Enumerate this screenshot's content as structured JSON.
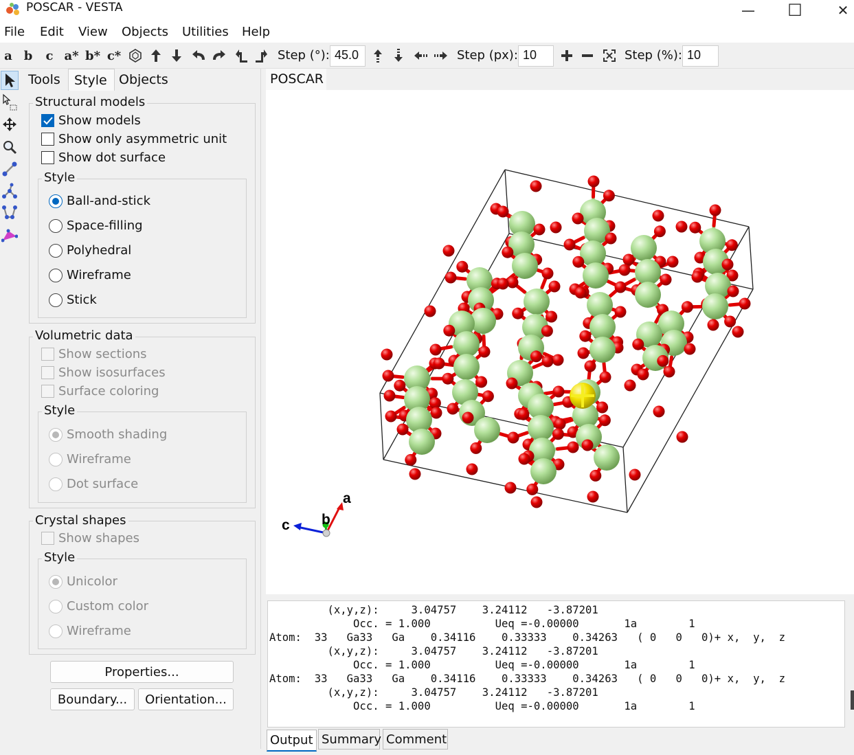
{
  "window": {
    "title": "POSCAR - VESTA",
    "minimize_glyph": "—",
    "maximize_glyph": "☐",
    "close_glyph": "✕"
  },
  "menu": [
    "File",
    "Edit",
    "View",
    "Objects",
    "Utilities",
    "Help"
  ],
  "toolbar": {
    "axis_buttons": [
      "a",
      "b",
      "c",
      "a*",
      "b*",
      "c*"
    ],
    "step_deg_label": "Step (°):",
    "step_deg_value": "45.0",
    "step_px_label": "Step (px):",
    "step_px_value": "10",
    "step_pct_label": "Step (%):",
    "step_pct_value": "10"
  },
  "panel": {
    "tabs": [
      "Tools",
      "Style",
      "Objects"
    ],
    "active_tab": "Style",
    "structural": {
      "title": "Structural models",
      "show_models": "Show models",
      "show_asym": "Show only asymmetric unit",
      "show_dot": "Show dot surface",
      "style_title": "Style",
      "styles": [
        "Ball-and-stick",
        "Space-filling",
        "Polyhedral",
        "Wireframe",
        "Stick"
      ]
    },
    "volumetric": {
      "title": "Volumetric data",
      "show_sections": "Show sections",
      "show_iso": "Show isosurfaces",
      "surface_coloring": "Surface coloring",
      "style_title": "Style",
      "styles": [
        "Smooth shading",
        "Wireframe",
        "Dot surface"
      ]
    },
    "crystal": {
      "title": "Crystal shapes",
      "show_shapes": "Show shapes",
      "style_title": "Style",
      "styles": [
        "Unicolor",
        "Custom color",
        "Wireframe"
      ]
    },
    "buttons": {
      "properties": "Properties...",
      "boundary": "Boundary...",
      "orientation": "Orientation..."
    }
  },
  "viewer": {
    "tab": "POSCAR",
    "axes": {
      "a": "a",
      "b": "b",
      "c": "c"
    },
    "colors": {
      "ga": "#a8dc8c",
      "o": "#e00000",
      "bond_ga": "#a8d890",
      "selected": "#f0e000"
    }
  },
  "output": {
    "lines": [
      "         (x,y,z):     3.04757    3.24112   -3.87201",
      "             Occ. = 1.000          Ueq =-0.00000       1a        1",
      "Atom:  33   Ga33   Ga    0.34116    0.33333    0.34263   ( 0   0   0)+ x,  y,  z",
      "         (x,y,z):     3.04757    3.24112   -3.87201",
      "             Occ. = 1.000          Ueq =-0.00000       1a        1",
      "Atom:  33   Ga33   Ga    0.34116    0.33333    0.34263   ( 0   0   0)+ x,  y,  z",
      "         (x,y,z):     3.04757    3.24112   -3.87201",
      "             Occ. = 1.000          Ueq =-0.00000       1a        1"
    ],
    "tabs": [
      "Output",
      "Summary",
      "Comment"
    ],
    "active_tab": "Output"
  }
}
